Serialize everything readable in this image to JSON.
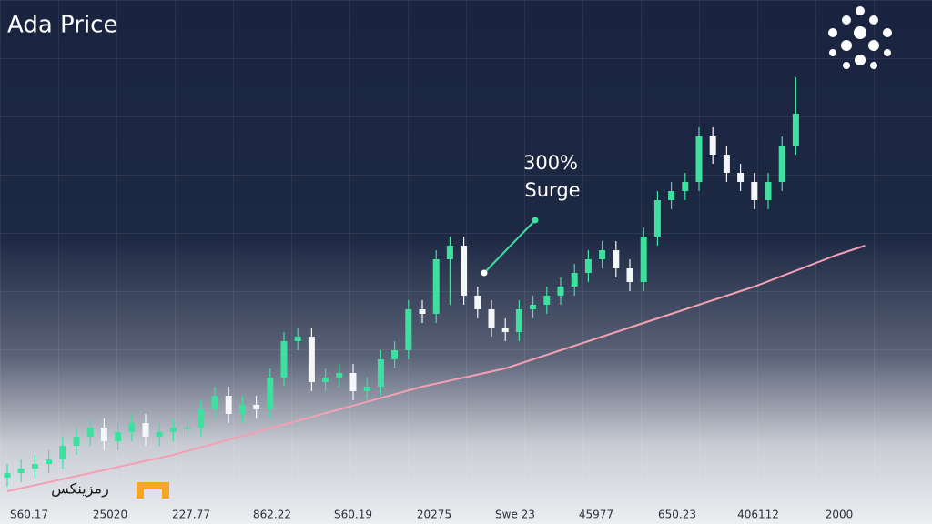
{
  "chart_data": {
    "type": "candlestick",
    "title": "Ada Price",
    "annotation": [
      "300%",
      "Surge"
    ],
    "watermark": "رمزینکس",
    "categories": [
      "S60.17",
      "25020",
      "227.77",
      "862.22",
      "S60.19",
      "20275",
      "Swe 23",
      "45977",
      "650.23",
      "406112",
      "2000"
    ],
    "ylim": [
      0,
      100
    ],
    "up_color": "#3ee0a0",
    "down_color": "#f4f6f8",
    "open": [
      7,
      8,
      9,
      10,
      11,
      14,
      16,
      18,
      15,
      17,
      19,
      16,
      17,
      18,
      18,
      22,
      25,
      21,
      23,
      22,
      29,
      37,
      38,
      28,
      29,
      30,
      26,
      27,
      33,
      35,
      44,
      43,
      55,
      58,
      47,
      44,
      40,
      39,
      44,
      45,
      47,
      49,
      52,
      55,
      57,
      53,
      50,
      60,
      68,
      70,
      72,
      82,
      78,
      74,
      72,
      68,
      72,
      80
    ],
    "high": [
      10,
      11,
      12,
      13,
      16,
      18,
      20,
      20,
      19,
      21,
      21,
      19,
      20,
      20,
      24,
      27,
      27,
      25,
      25,
      31,
      39,
      40,
      40,
      31,
      32,
      32,
      29,
      35,
      37,
      46,
      46,
      57,
      60,
      60,
      49,
      46,
      42,
      46,
      47,
      49,
      51,
      54,
      57,
      59,
      59,
      55,
      62,
      70,
      72,
      74,
      84,
      84,
      80,
      76,
      74,
      74,
      82,
      95
    ],
    "low": [
      5,
      6,
      7,
      8,
      9,
      12,
      14,
      13,
      13,
      15,
      14,
      14,
      15,
      16,
      16,
      20,
      19,
      19,
      20,
      20,
      27,
      35,
      26,
      26,
      27,
      24,
      24,
      25,
      31,
      33,
      41,
      41,
      45,
      45,
      42,
      38,
      37,
      37,
      42,
      43,
      45,
      47,
      50,
      53,
      51,
      48,
      48,
      58,
      66,
      68,
      70,
      76,
      72,
      70,
      66,
      66,
      70,
      78
    ],
    "close": [
      8,
      9,
      10,
      11,
      14,
      16,
      18,
      15,
      17,
      19,
      16,
      17,
      18,
      18,
      22,
      25,
      21,
      23,
      22,
      29,
      37,
      38,
      28,
      29,
      30,
      26,
      27,
      33,
      35,
      44,
      43,
      55,
      58,
      47,
      44,
      40,
      39,
      44,
      45,
      47,
      49,
      52,
      55,
      57,
      53,
      50,
      60,
      68,
      70,
      72,
      82,
      78,
      74,
      72,
      68,
      72,
      80,
      87
    ],
    "trend": {
      "color": "#f4a0b4",
      "x": [
        0,
        6,
        12,
        18,
        24,
        30,
        36,
        42,
        48,
        54,
        60,
        62
      ],
      "values": [
        4,
        8,
        12,
        17,
        22,
        27,
        31,
        37,
        43,
        49,
        56,
        58
      ]
    }
  }
}
